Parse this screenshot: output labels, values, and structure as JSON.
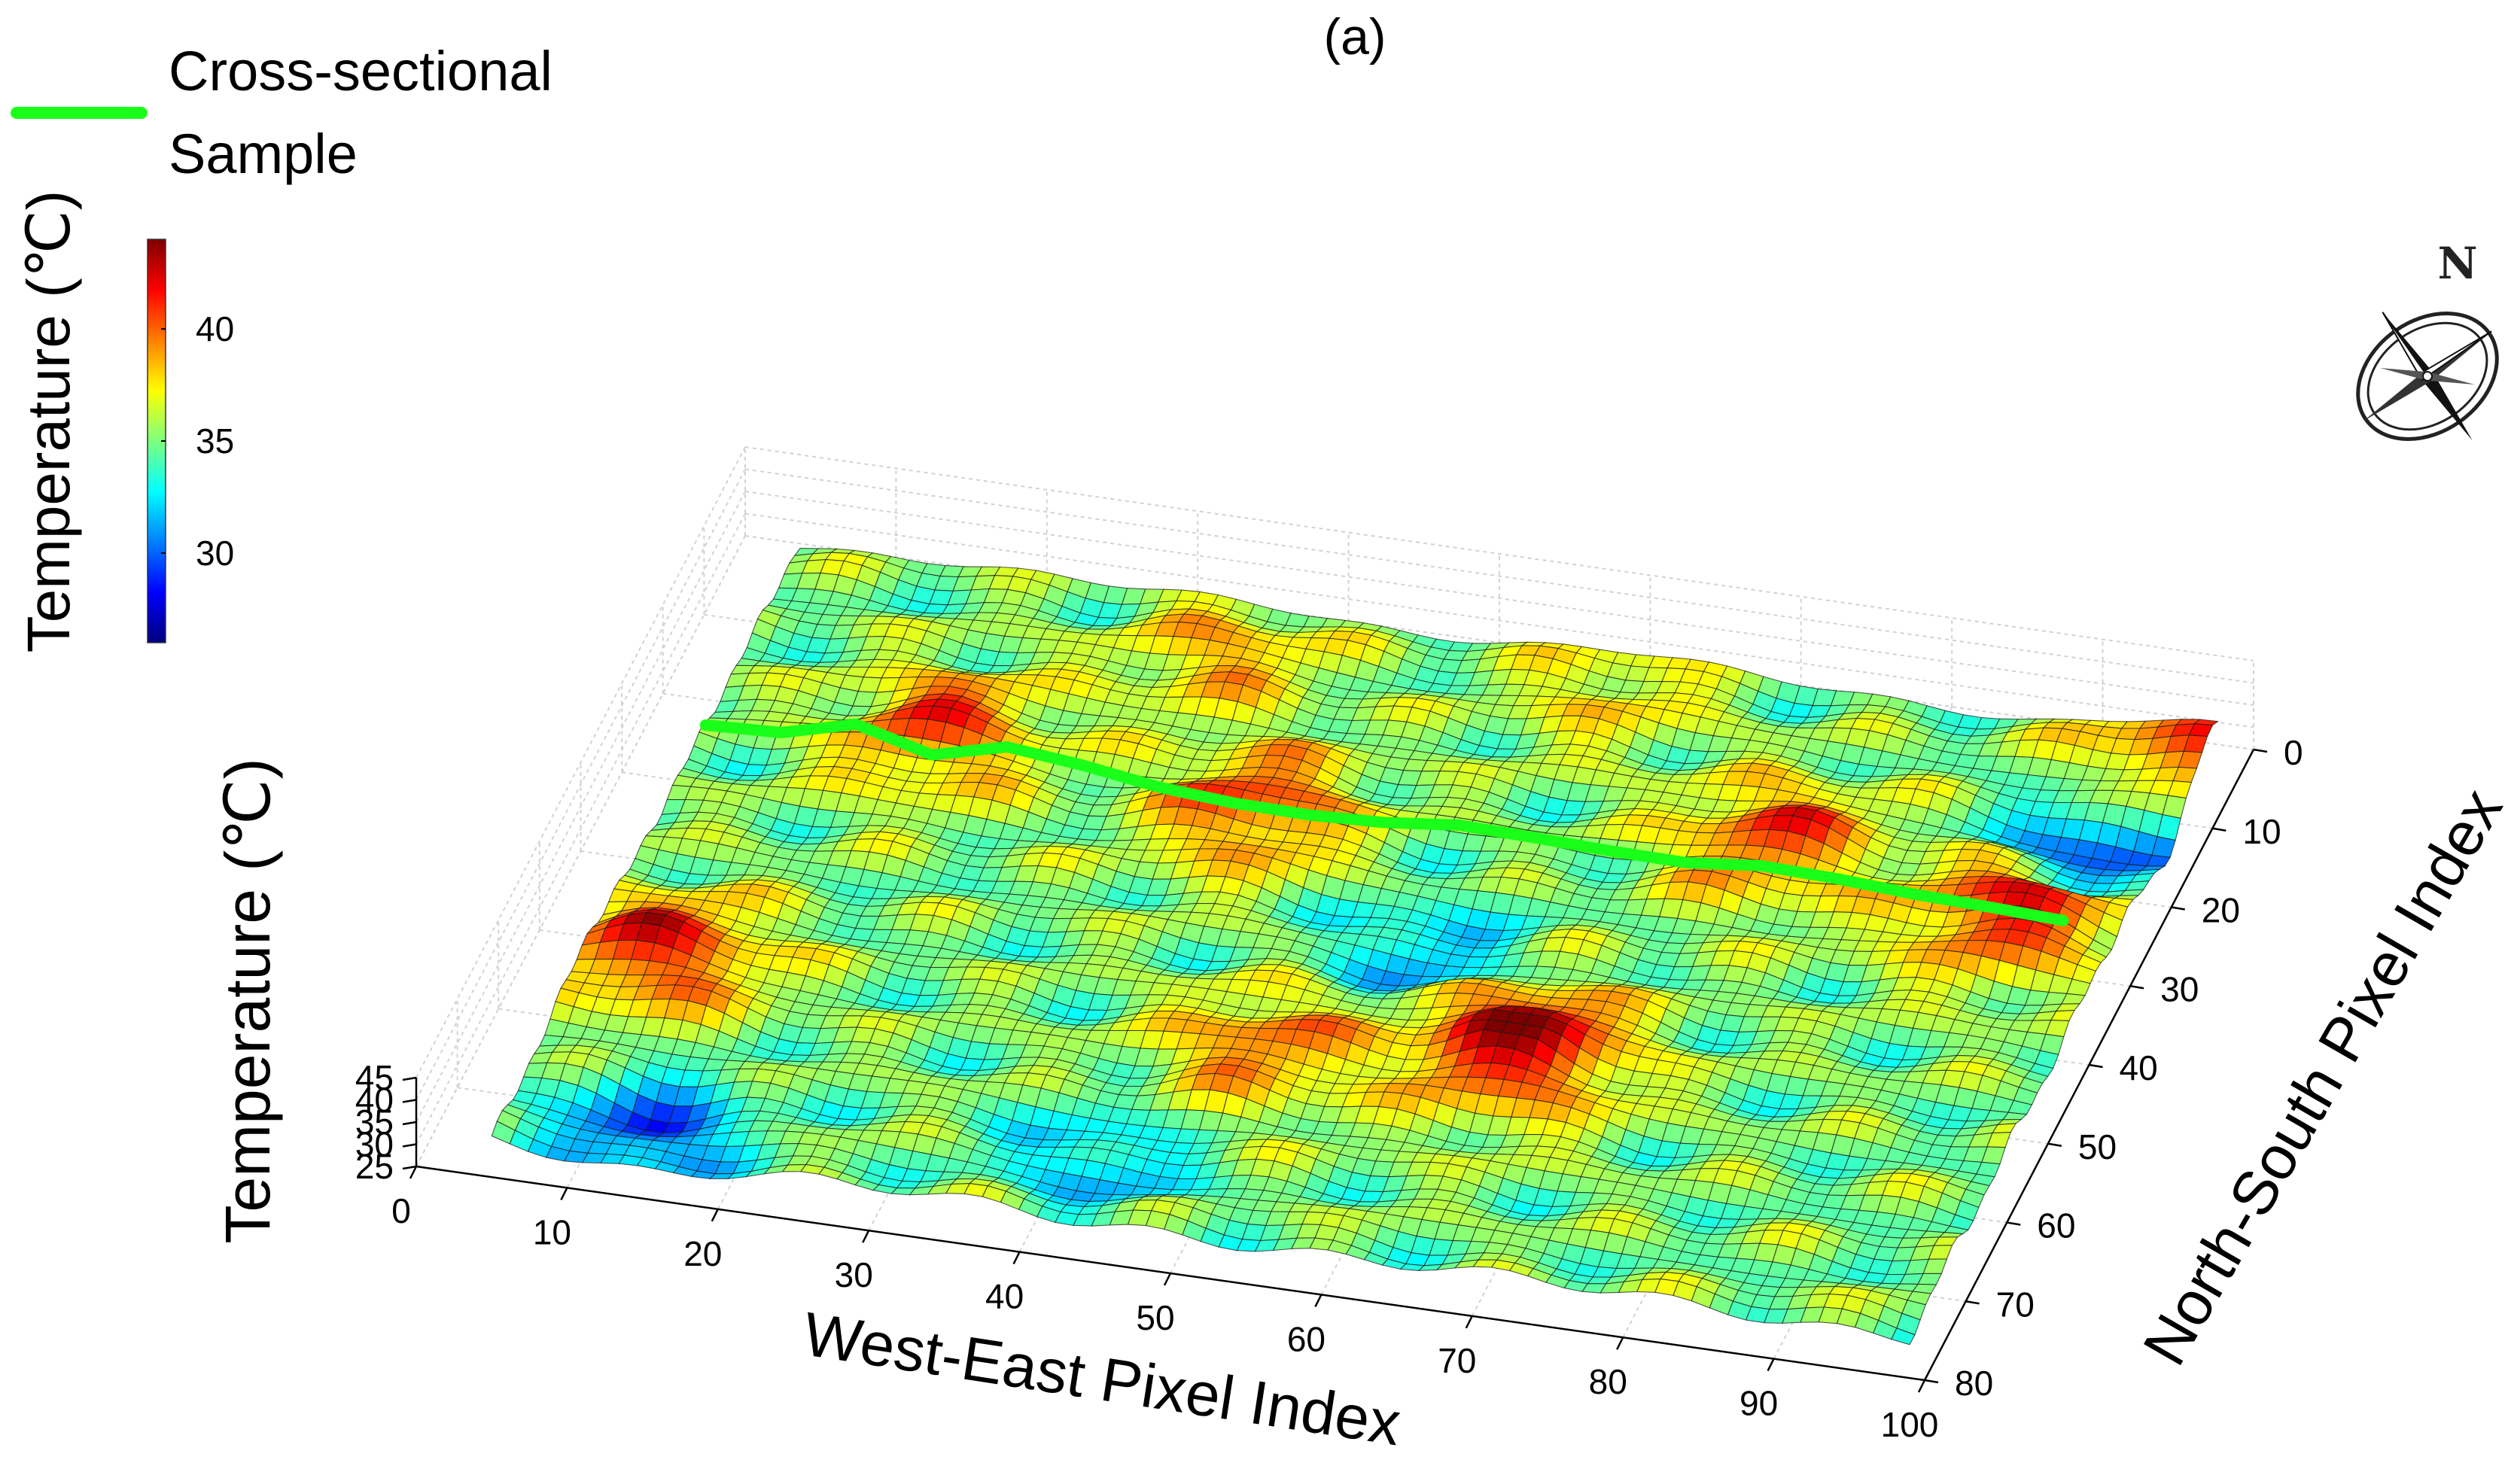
{
  "chart_data": {
    "type": "surface3d",
    "title": "(a)",
    "xlabel": "West-East Pixel Index",
    "ylabel": "North-South Pixel Index",
    "zlabel": "Temperature (℃)",
    "x_ticks": [
      "0",
      "10",
      "20",
      "30",
      "40",
      "50",
      "60",
      "70",
      "80",
      "90",
      "100"
    ],
    "y_ticks": [
      "0",
      "10",
      "20",
      "30",
      "40",
      "50",
      "60",
      "70",
      "80"
    ],
    "z_ticks": [
      "25",
      "30",
      "35",
      "40",
      "45"
    ],
    "xlim": [
      0,
      100
    ],
    "ylim": [
      0,
      80
    ],
    "zlim": [
      25,
      45
    ],
    "grid": true,
    "surface_extent": {
      "x": [
        5,
        99
      ],
      "y": [
        5,
        80
      ]
    },
    "temperature_range": [
      26,
      43
    ],
    "colormap": [
      "#00007f",
      "#0000ff",
      "#007fff",
      "#00ffff",
      "#7fff7f",
      "#ffff00",
      "#ff7f00",
      "#ff0000",
      "#7f0000"
    ],
    "peaks": [
      {
        "x": 10,
        "y": 57,
        "temp": 41
      },
      {
        "x": 20,
        "y": 26,
        "temp": 40
      },
      {
        "x": 42,
        "y": 30,
        "temp": 40
      },
      {
        "x": 50,
        "y": 58,
        "temp": 39
      },
      {
        "x": 66,
        "y": 54,
        "temp": 43
      },
      {
        "x": 75,
        "y": 25,
        "temp": 40
      },
      {
        "x": 92,
        "y": 30,
        "temp": 41
      },
      {
        "x": 35,
        "y": 12,
        "temp": 38
      },
      {
        "x": 60,
        "y": 10,
        "temp": 37
      },
      {
        "x": 97,
        "y": 8,
        "temp": 40
      }
    ],
    "troughs": [
      {
        "x": 14,
        "y": 75,
        "temp": 29
      },
      {
        "x": 95,
        "y": 18,
        "temp": 28
      },
      {
        "x": 56,
        "y": 42,
        "temp": 31
      },
      {
        "x": 43,
        "y": 72,
        "temp": 31
      }
    ],
    "cross_section": {
      "label_line1": "Cross-sectional",
      "label_line2": "Sample",
      "color": "#1aff1a",
      "y": 28,
      "x": [
        5,
        10,
        15,
        20,
        25,
        30,
        35,
        40,
        45,
        50,
        55,
        60,
        65,
        70,
        75,
        80,
        85,
        90,
        95
      ],
      "temps": [
        34.5,
        35.2,
        39.5,
        35.0,
        39.2,
        37.5,
        35.0,
        33.8,
        33.5,
        34.2,
        36.0,
        35.6,
        35.0,
        34.8,
        36.5,
        36.0,
        35.0,
        34.5,
        33.8
      ]
    },
    "colorbar": {
      "label": "Temperature (℃)",
      "ticks": [
        "30",
        "35",
        "40"
      ],
      "range": [
        26,
        44
      ]
    },
    "compass": {
      "label": "N"
    }
  }
}
